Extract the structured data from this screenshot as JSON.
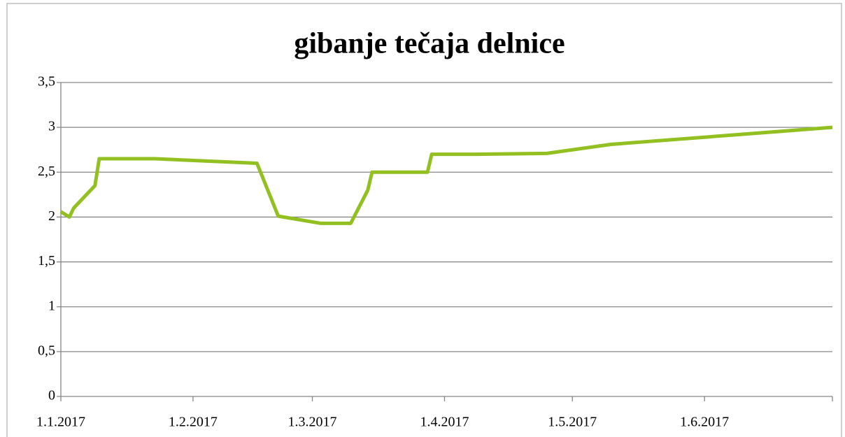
{
  "chart_data": {
    "type": "line",
    "title": "gibanje tečaja delnice",
    "x": [
      "2017-01-01",
      "2017-01-03",
      "2017-01-04",
      "2017-01-09",
      "2017-01-10",
      "2017-01-23",
      "2017-02-16",
      "2017-02-21",
      "2017-03-03",
      "2017-03-10",
      "2017-03-14",
      "2017-03-15",
      "2017-03-28",
      "2017-03-29",
      "2017-04-08",
      "2017-04-25",
      "2017-05-10",
      "2017-07-01"
    ],
    "values": [
      2.06,
      2.0,
      2.1,
      2.35,
      2.65,
      2.65,
      2.6,
      2.01,
      1.93,
      1.93,
      2.3,
      2.5,
      2.5,
      2.7,
      2.7,
      2.71,
      2.81,
      3.0
    ],
    "color": "#92c020",
    "xlim": [
      "2017-01-01",
      "2017-07-01"
    ],
    "xticks": [
      {
        "value": "2017-01-01",
        "label": "1.1.2017"
      },
      {
        "value": "2017-02-01",
        "label": "1.2.2017"
      },
      {
        "value": "2017-03-01",
        "label": "1.3.2017"
      },
      {
        "value": "2017-04-01",
        "label": "1.4.2017"
      },
      {
        "value": "2017-05-01",
        "label": "1.5.2017"
      },
      {
        "value": "2017-06-01",
        "label": "1.6.2017"
      }
    ],
    "ylim": [
      0,
      3.5
    ],
    "yticks": [
      0,
      {
        "value": 0.5,
        "label": "0,5"
      },
      1,
      {
        "value": 1.5,
        "label": "1,5"
      },
      2,
      {
        "value": 2.5,
        "label": "2,5"
      },
      3,
      {
        "value": 3.5,
        "label": "3,5"
      }
    ],
    "grid": true
  }
}
